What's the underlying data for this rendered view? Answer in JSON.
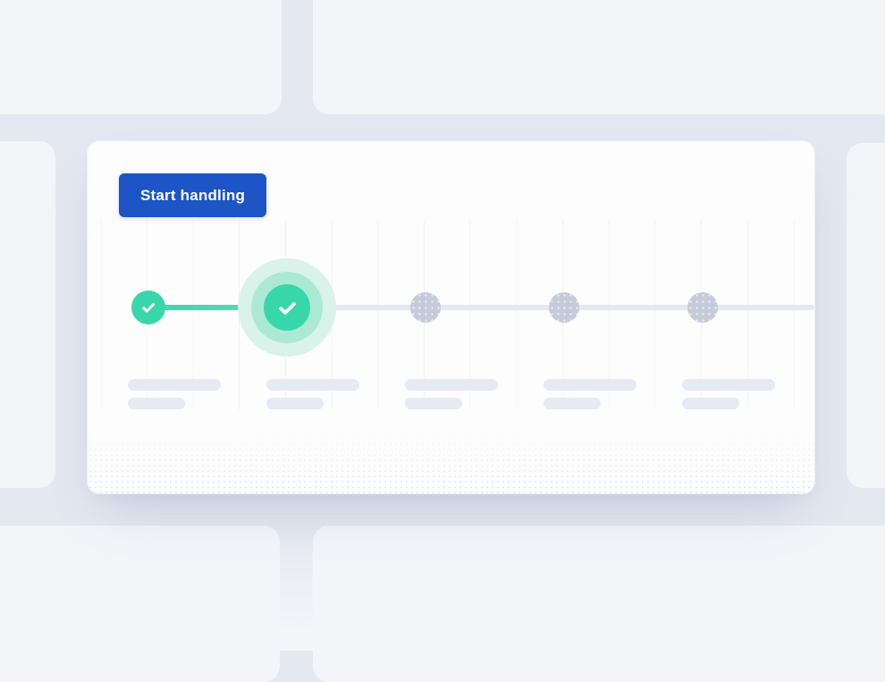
{
  "card": {
    "button": {
      "label": "Start handling"
    }
  },
  "stepper": {
    "total_steps": 5,
    "completed_steps": 2,
    "active_step_index": 1,
    "steps": [
      {
        "id": "step-1",
        "status": "done",
        "icon": "check-icon"
      },
      {
        "id": "step-2",
        "status": "active",
        "icon": "check-icon"
      },
      {
        "id": "step-3",
        "status": "pending",
        "icon": "pending-dot"
      },
      {
        "id": "step-4",
        "status": "pending",
        "icon": "pending-dot"
      },
      {
        "id": "step-5",
        "status": "pending",
        "icon": "pending-dot"
      }
    ],
    "skeleton": {
      "line_widths": [
        104,
        64
      ]
    }
  },
  "colors": {
    "accent_blue": "#1d54c6",
    "success_green": "#38d7a9",
    "success_halo_mid": "#abe9d4",
    "success_halo_outer": "#d9f3ea",
    "pending_gray": "#c6cbd9",
    "track_gray": "#e4e8f0",
    "card_bg": "#fdfdfe",
    "backdrop_card": "#f3f5f9",
    "backdrop_gap": "#e4e8f1",
    "skeleton_bar": "#e7eaf2"
  }
}
